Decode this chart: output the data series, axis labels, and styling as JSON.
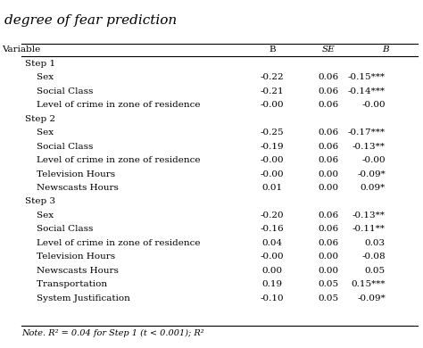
{
  "title": "degree of fear prediction",
  "headers": [
    "Variable",
    "B",
    "SE",
    "B"
  ],
  "header_styles": [
    "normal",
    "normal",
    "italic",
    "italic"
  ],
  "rows": [
    {
      "label": "Step 1",
      "indent": 0,
      "bold": false,
      "B": "",
      "SE": "",
      "beta": ""
    },
    {
      "label": "Sex",
      "indent": 1,
      "bold": false,
      "B": "-0.22",
      "SE": "0.06",
      "beta": "-0.15***"
    },
    {
      "label": "Social Class",
      "indent": 1,
      "bold": false,
      "B": "-0.21",
      "SE": "0.06",
      "beta": "-0.14***"
    },
    {
      "label": "Level of crime in zone of residence",
      "indent": 1,
      "bold": false,
      "B": "-0.00",
      "SE": "0.06",
      "beta": "-0.00"
    },
    {
      "label": "Step 2",
      "indent": 0,
      "bold": false,
      "B": "",
      "SE": "",
      "beta": ""
    },
    {
      "label": "Sex",
      "indent": 1,
      "bold": false,
      "B": "-0.25",
      "SE": "0.06",
      "beta": "-0.17***"
    },
    {
      "label": "Social Class",
      "indent": 1,
      "bold": false,
      "B": "-0.19",
      "SE": "0.06",
      "beta": "-0.13**"
    },
    {
      "label": "Level of crime in zone of residence",
      "indent": 1,
      "bold": false,
      "B": "-0.00",
      "SE": "0.06",
      "beta": "-0.00"
    },
    {
      "label": "Television Hours",
      "indent": 1,
      "bold": false,
      "B": "-0.00",
      "SE": "0.00",
      "beta": "-0.09*"
    },
    {
      "label": "Newscasts Hours",
      "indent": 1,
      "bold": false,
      "B": "0.01",
      "SE": "0.00",
      "beta": "0.09*"
    },
    {
      "label": "Step 3",
      "indent": 0,
      "bold": false,
      "B": "",
      "SE": "",
      "beta": ""
    },
    {
      "label": "Sex",
      "indent": 1,
      "bold": false,
      "B": "-0.20",
      "SE": "0.06",
      "beta": "-0.13**"
    },
    {
      "label": "Social Class",
      "indent": 1,
      "bold": false,
      "B": "-0.16",
      "SE": "0.06",
      "beta": "-0.11**"
    },
    {
      "label": "Level of crime in zone of residence",
      "indent": 1,
      "bold": false,
      "B": "0.04",
      "SE": "0.06",
      "beta": "0.03"
    },
    {
      "label": "Television Hours",
      "indent": 1,
      "bold": false,
      "B": "-0.00",
      "SE": "0.00",
      "beta": "-0.08"
    },
    {
      "label": "Newscasts Hours",
      "indent": 1,
      "bold": false,
      "B": "0.00",
      "SE": "0.00",
      "beta": "0.05"
    },
    {
      "label": "Transportation",
      "indent": 1,
      "bold": false,
      "B": "0.19",
      "SE": "0.05",
      "beta": "0.15***"
    },
    {
      "label": "System Justification",
      "indent": 1,
      "bold": false,
      "B": "-0.10",
      "SE": "0.05",
      "beta": "-0.09*"
    }
  ],
  "note": "Note. R² = 0.04 for Step 1 (t < 0.001); R²",
  "bg_color": "#f5f5f5",
  "header_bg": "#e8e8e8",
  "line_color": "#aaaaaa",
  "font_size": 7.5,
  "title_font_size": 11
}
